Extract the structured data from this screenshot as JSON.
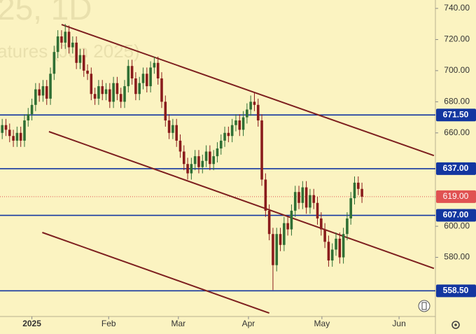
{
  "chart_data": {
    "type": "candlestick",
    "watermark": [
      "25, 1D",
      "atures (Jun 2025)"
    ],
    "xlim": [
      -0.6,
      116.8
    ],
    "xticks": [
      {
        "value": 8,
        "label": "2025"
      },
      {
        "value": 28.7,
        "label": "Feb"
      },
      {
        "value": 47.5,
        "label": "Mar"
      },
      {
        "value": 66.4,
        "label": "Apr"
      },
      {
        "value": 86.2,
        "label": "May"
      },
      {
        "value": 107,
        "label": "Jun"
      }
    ],
    "ylim": [
      542,
      745.4
    ],
    "yticks": [
      {
        "value": 580,
        "label": "580.00"
      },
      {
        "value": 600,
        "label": "600.00"
      },
      {
        "value": 660,
        "label": "660.00"
      },
      {
        "value": 680,
        "label": "680.00"
      },
      {
        "value": 700,
        "label": "700.00"
      },
      {
        "value": 720,
        "label": "720.00"
      },
      {
        "value": 740,
        "label": "740.00"
      }
    ],
    "up_color": "#2f6f34",
    "down_color": "#8a1c1c",
    "open": [
      660,
      665,
      662,
      658,
      655,
      660,
      655,
      668,
      672,
      678,
      688,
      684,
      690,
      682,
      698,
      712,
      722,
      718,
      725,
      715,
      718,
      705,
      710,
      700,
      698,
      685,
      682,
      690,
      685,
      688,
      680,
      692,
      685,
      680,
      690,
      703,
      695,
      685,
      692,
      698,
      690,
      702,
      705,
      695,
      680,
      668,
      660,
      665,
      655,
      648,
      640,
      634,
      640,
      645,
      638,
      642,
      648,
      640,
      645,
      650,
      655,
      660,
      658,
      665,
      668,
      662,
      670,
      675,
      680,
      678,
      668,
      630,
      610,
      595,
      575,
      595,
      588,
      602,
      598,
      610,
      622,
      615,
      625,
      612,
      620,
      615,
      605,
      598,
      590,
      578,
      585,
      592,
      580,
      595,
      605,
      618,
      628,
      624
    ],
    "high": [
      669,
      669,
      666,
      662,
      664,
      664,
      672,
      676,
      682,
      692,
      692,
      694,
      694,
      702,
      716,
      726,
      726,
      730,
      729,
      722,
      722,
      714,
      714,
      704,
      702,
      689,
      694,
      694,
      692,
      692,
      696,
      696,
      689,
      694,
      707,
      707,
      699,
      696,
      702,
      702,
      706,
      709,
      709,
      699,
      684,
      672,
      669,
      669,
      659,
      652,
      644,
      644,
      649,
      649,
      646,
      652,
      652,
      649,
      654,
      659,
      664,
      664,
      669,
      672,
      672,
      674,
      679,
      684,
      686,
      682,
      672,
      634,
      614,
      599,
      599,
      599,
      606,
      606,
      614,
      626,
      626,
      629,
      629,
      624,
      624,
      619,
      609,
      602,
      594,
      589,
      596,
      596,
      599,
      609,
      622,
      632,
      632,
      628
    ],
    "low": [
      656,
      658,
      654,
      651,
      651,
      651,
      651,
      664,
      668,
      674,
      680,
      680,
      678,
      678,
      694,
      708,
      714,
      714,
      711,
      711,
      701,
      701,
      696,
      694,
      681,
      678,
      678,
      681,
      681,
      676,
      676,
      681,
      676,
      676,
      686,
      691,
      681,
      681,
      688,
      686,
      686,
      698,
      691,
      676,
      664,
      656,
      656,
      651,
      644,
      636,
      630,
      630,
      636,
      634,
      634,
      638,
      636,
      636,
      641,
      646,
      651,
      654,
      654,
      661,
      658,
      658,
      666,
      671,
      674,
      664,
      626,
      606,
      591,
      559,
      571,
      584,
      584,
      594,
      594,
      606,
      611,
      611,
      608,
      608,
      611,
      601,
      594,
      586,
      574,
      574,
      581,
      576,
      576,
      591,
      601,
      614,
      620,
      615
    ],
    "close": [
      665,
      662,
      658,
      655,
      660,
      655,
      668,
      672,
      678,
      688,
      684,
      690,
      682,
      698,
      712,
      722,
      718,
      725,
      715,
      718,
      705,
      710,
      700,
      698,
      685,
      682,
      690,
      685,
      688,
      680,
      692,
      685,
      680,
      690,
      703,
      695,
      685,
      692,
      698,
      690,
      702,
      705,
      695,
      680,
      668,
      660,
      665,
      655,
      648,
      640,
      634,
      640,
      645,
      638,
      642,
      648,
      640,
      645,
      650,
      655,
      660,
      658,
      665,
      668,
      662,
      670,
      675,
      680,
      678,
      668,
      630,
      610,
      595,
      575,
      595,
      588,
      602,
      598,
      610,
      622,
      615,
      625,
      612,
      620,
      615,
      605,
      598,
      590,
      578,
      585,
      592,
      580,
      595,
      605,
      618,
      628,
      624,
      619
    ],
    "trend_lines": [
      {
        "x": [
          16,
          116.4
        ],
        "y": [
          729.6,
          645.4
        ]
      },
      {
        "x": [
          12.6,
          116.4
        ],
        "y": [
          660.8,
          572.9
        ]
      },
      {
        "x": [
          10.8,
          72
        ],
        "y": [
          596,
          544.2
        ]
      }
    ],
    "trend_color": "#7d1f1f",
    "levels": [
      {
        "value": 671.5,
        "label": "671.50"
      },
      {
        "value": 637,
        "label": "637.00"
      },
      {
        "value": 607,
        "label": "607.00"
      },
      {
        "value": 558.5,
        "label": "558.50"
      }
    ],
    "level_color": "#1336a0",
    "last_price": {
      "value": 619,
      "label": "619.00"
    },
    "last_color": "#e05252"
  }
}
